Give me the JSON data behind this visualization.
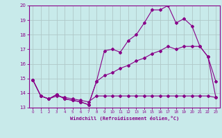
{
  "xlabel": "Windchill (Refroidissement éolien,°C)",
  "xlim": [
    -0.5,
    23.5
  ],
  "ylim": [
    13,
    20
  ],
  "yticks": [
    13,
    14,
    15,
    16,
    17,
    18,
    19,
    20
  ],
  "xticks": [
    0,
    1,
    2,
    3,
    4,
    5,
    6,
    7,
    8,
    9,
    10,
    11,
    12,
    13,
    14,
    15,
    16,
    17,
    18,
    19,
    20,
    21,
    22,
    23
  ],
  "bg_color": "#c8eaea",
  "grid_color": "#b0c8c8",
  "line_color": "#880088",
  "line1_x": [
    0,
    1,
    2,
    3,
    4,
    5,
    6,
    7,
    8,
    9,
    10,
    11,
    12,
    13,
    14,
    15,
    16,
    17,
    18,
    19,
    20,
    21,
    22,
    23
  ],
  "line1_y": [
    14.9,
    13.8,
    13.6,
    13.9,
    13.6,
    13.5,
    13.4,
    13.2,
    14.8,
    16.9,
    17.0,
    16.8,
    17.6,
    18.0,
    18.8,
    19.7,
    19.7,
    20.0,
    18.8,
    19.1,
    18.6,
    17.2,
    16.5,
    14.8
  ],
  "line2_x": [
    0,
    1,
    2,
    3,
    4,
    5,
    6,
    7,
    8,
    9,
    10,
    11,
    12,
    13,
    14,
    15,
    16,
    17,
    18,
    19,
    20,
    21,
    22,
    23
  ],
  "line2_y": [
    14.9,
    13.8,
    13.6,
    13.9,
    13.6,
    13.5,
    13.4,
    13.2,
    14.8,
    15.2,
    15.4,
    15.7,
    15.9,
    16.2,
    16.4,
    16.7,
    16.9,
    17.2,
    17.0,
    17.2,
    17.2,
    17.2,
    16.5,
    13.7
  ],
  "line3_x": [
    0,
    1,
    2,
    3,
    4,
    5,
    6,
    7,
    8,
    9,
    10,
    11,
    12,
    13,
    14,
    15,
    16,
    17,
    18,
    19,
    20,
    21,
    22,
    23
  ],
  "line3_y": [
    14.9,
    13.8,
    13.6,
    13.8,
    13.7,
    13.6,
    13.5,
    13.4,
    13.8,
    13.8,
    13.8,
    13.8,
    13.8,
    13.8,
    13.8,
    13.8,
    13.8,
    13.8,
    13.8,
    13.8,
    13.8,
    13.8,
    13.8,
    13.7
  ]
}
